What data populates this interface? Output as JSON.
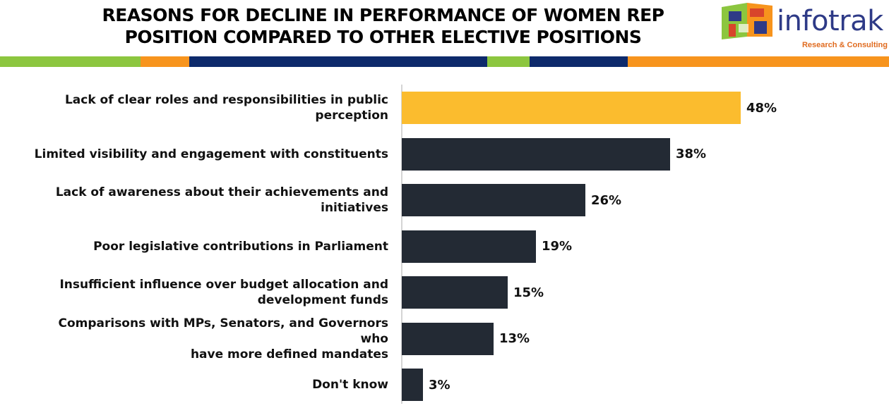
{
  "header": {
    "title_line1": "REASONS FOR DECLINE IN PERFORMANCE OF WOMEN REP",
    "title_line2": "POSITION COMPARED TO OTHER ELECTIVE POSITIONS"
  },
  "logo": {
    "name": "infotrak",
    "tagline": "Research & Consulting",
    "word_color": "#2e3a87",
    "tag_color": "#e06b1f"
  },
  "colors": {
    "highlight": "#fbbc2e",
    "bar": "#232a34",
    "stripe_green": "#8cc63f",
    "stripe_orange": "#f7941d",
    "stripe_navy": "#0d2a6b"
  },
  "chart_data": {
    "type": "bar",
    "orientation": "horizontal",
    "categories": [
      "Lack of clear roles and responsibilities in public perception",
      "Limited visibility and engagement with constituents",
      "Lack of awareness about their achievements and initiatives",
      "Poor legislative contributions in Parliament",
      "Insufficient influence over budget allocation and development funds",
      "Comparisons with MPs, Senators, and Governors who have more defined mandates",
      "Don't know"
    ],
    "label_lines": [
      [
        "Lack of clear roles and responsibilities in public",
        "perception"
      ],
      [
        "Limited visibility and engagement with constituents"
      ],
      [
        "Lack of awareness about their achievements and",
        "initiatives"
      ],
      [
        "Poor legislative contributions in Parliament"
      ],
      [
        "Insufficient influence over budget allocation and",
        "development funds"
      ],
      [
        "Comparisons with MPs, Senators, and Governors who",
        "have more defined mandates"
      ],
      [
        "Don't know"
      ]
    ],
    "values": [
      48,
      38,
      26,
      19,
      15,
      13,
      3
    ],
    "value_labels": [
      "48%",
      "38%",
      "26%",
      "19%",
      "15%",
      "13%",
      "3%"
    ],
    "highlight_index": 0,
    "unit": "%",
    "xlim": [
      0,
      100
    ],
    "grid": false,
    "legend": "none"
  }
}
